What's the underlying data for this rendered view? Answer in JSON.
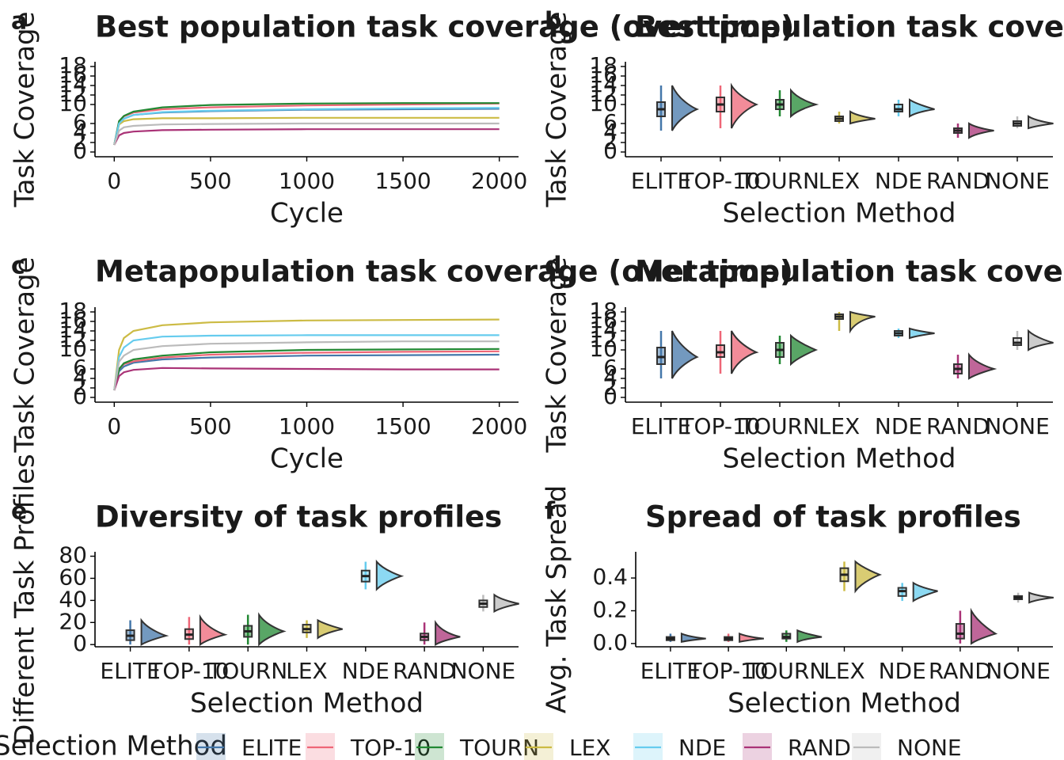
{
  "chart_data": [
    {
      "type": "line",
      "label": "a",
      "title": "Best population task coverage (over time)",
      "x_label": "Cycle",
      "y_label": "Task Coverage",
      "x": [
        0,
        25,
        50,
        100,
        250,
        500,
        1000,
        1500,
        2000
      ],
      "xlim": [
        -100,
        2100
      ],
      "xticks": [
        0,
        500,
        1000,
        1500,
        2000
      ],
      "ylim": [
        -1,
        19
      ],
      "yticks": [
        0,
        2,
        4,
        6,
        10,
        12,
        14,
        16,
        18
      ],
      "series": [
        {
          "name": "ELITE",
          "color": "#4477aa",
          "values": [
            1.5,
            6,
            7,
            7.8,
            8.3,
            8.6,
            8.9,
            9,
            9.1
          ]
        },
        {
          "name": "TOP-10",
          "color": "#ee6677",
          "values": [
            1.5,
            6.5,
            7.5,
            8.3,
            9,
            9.4,
            9.8,
            10,
            10.2
          ]
        },
        {
          "name": "TOURN",
          "color": "#228833",
          "values": [
            1.5,
            6.5,
            7.6,
            8.5,
            9.4,
            9.9,
            10.2,
            10.3,
            10.3
          ]
        },
        {
          "name": "LEX",
          "color": "#ccbb44",
          "values": [
            1.5,
            5.8,
            6.5,
            6.9,
            7.1,
            7.1,
            7.2,
            7.2,
            7.2
          ]
        },
        {
          "name": "NDE",
          "color": "#66ccee",
          "values": [
            1.5,
            6,
            7,
            7.8,
            8.4,
            8.7,
            9,
            9.2,
            9.3
          ]
        },
        {
          "name": "RAND",
          "color": "#aa3377",
          "values": [
            1.5,
            3.5,
            4,
            4.3,
            4.6,
            4.7,
            4.8,
            4.8,
            4.8
          ]
        },
        {
          "name": "NONE",
          "color": "#bbbbbb",
          "values": [
            1.5,
            4.5,
            5.2,
            5.5,
            5.8,
            5.9,
            6,
            6,
            6
          ]
        }
      ]
    },
    {
      "type": "box",
      "label": "b",
      "title": "Best population task coverage (final)",
      "x_label": "Selection Method",
      "y_label": "Task Coverage",
      "categories": [
        "ELITE",
        "TOP-10",
        "TOURN",
        "LEX",
        "NDE",
        "RAND",
        "NONE"
      ],
      "colors": [
        "#4477aa",
        "#ee6677",
        "#228833",
        "#ccbb44",
        "#66ccee",
        "#aa3377",
        "#bbbbbb"
      ],
      "ylim": [
        -1,
        19
      ],
      "yticks": [
        0,
        2,
        4,
        6,
        10,
        12,
        14,
        16,
        18
      ],
      "min": [
        4.5,
        5,
        7.5,
        6,
        7.5,
        3,
        5
      ],
      "q1": [
        7.5,
        8.5,
        9,
        6.5,
        8.5,
        4,
        5.5
      ],
      "median": [
        9,
        10,
        10,
        7,
        9,
        4.5,
        6
      ],
      "q3": [
        10.5,
        11.5,
        11,
        7.5,
        10,
        5,
        6.5
      ],
      "max": [
        14,
        14,
        13,
        8.5,
        11,
        6,
        7.5
      ]
    },
    {
      "type": "line",
      "label": "c",
      "title": "Metapopulation task coverage (over time)",
      "x_label": "Cycle",
      "y_label": "Task Coverage",
      "x": [
        0,
        25,
        50,
        100,
        250,
        500,
        1000,
        1500,
        2000
      ],
      "xlim": [
        -100,
        2100
      ],
      "xticks": [
        0,
        500,
        1000,
        1500,
        2000
      ],
      "ylim": [
        -1,
        19
      ],
      "yticks": [
        0,
        2,
        4,
        6,
        10,
        12,
        14,
        16,
        18
      ],
      "series": [
        {
          "name": "ELITE",
          "color": "#4477aa",
          "values": [
            1.5,
            5.5,
            6.5,
            7.3,
            8,
            8.4,
            8.8,
            8.9,
            9
          ]
        },
        {
          "name": "TOP-10",
          "color": "#ee6677",
          "values": [
            1.5,
            6,
            7,
            7.6,
            8.4,
            9,
            9.4,
            9.6,
            9.7
          ]
        },
        {
          "name": "TOURN",
          "color": "#228833",
          "values": [
            1.5,
            6,
            7.2,
            8,
            8.8,
            9.5,
            10,
            10.1,
            10.2
          ]
        },
        {
          "name": "LEX",
          "color": "#ccbb44",
          "values": [
            1.5,
            10,
            12.5,
            14,
            15.2,
            15.8,
            16.2,
            16.3,
            16.4
          ]
        },
        {
          "name": "NDE",
          "color": "#66ccee",
          "values": [
            1.5,
            8.5,
            10.5,
            12,
            12.8,
            13,
            13.1,
            13.1,
            13.1
          ]
        },
        {
          "name": "RAND",
          "color": "#aa3377",
          "values": [
            1.5,
            4.5,
            5.3,
            5.8,
            6.2,
            6.1,
            6,
            5.9,
            5.9
          ]
        },
        {
          "name": "NONE",
          "color": "#bbbbbb",
          "values": [
            1.5,
            7.5,
            8.8,
            10,
            10.8,
            11.3,
            11.6,
            11.8,
            11.8
          ]
        }
      ]
    },
    {
      "type": "box",
      "label": "d",
      "title": "Metapopulation task coverage (final)",
      "x_label": "Selection Method",
      "y_label": "Task Coverage",
      "categories": [
        "ELITE",
        "TOP-10",
        "TOURN",
        "LEX",
        "NDE",
        "RAND",
        "NONE"
      ],
      "colors": [
        "#4477aa",
        "#ee6677",
        "#228833",
        "#ccbb44",
        "#66ccee",
        "#aa3377",
        "#bbbbbb"
      ],
      "ylim": [
        -1,
        19
      ],
      "yticks": [
        0,
        2,
        4,
        6,
        10,
        12,
        14,
        16,
        18
      ],
      "min": [
        4,
        5,
        7,
        14,
        12.5,
        4,
        10
      ],
      "q1": [
        7,
        8.5,
        8.5,
        16.5,
        13,
        5,
        11
      ],
      "median": [
        8.5,
        9.5,
        10,
        17,
        13.5,
        6,
        11.5
      ],
      "q3": [
        10.5,
        11,
        11.5,
        17.5,
        14,
        7,
        12.5
      ],
      "max": [
        14,
        14,
        13,
        18,
        14.5,
        9,
        14
      ]
    },
    {
      "type": "box",
      "label": "e",
      "title": "Diversity of task profiles",
      "x_label": "Selection Method",
      "y_label": "Different Task Profiles",
      "categories": [
        "ELITE",
        "TOP-10",
        "TOURN",
        "LEX",
        "NDE",
        "RAND",
        "NONE"
      ],
      "colors": [
        "#4477aa",
        "#ee6677",
        "#228833",
        "#ccbb44",
        "#66ccee",
        "#aa3377",
        "#bbbbbb"
      ],
      "ylim": [
        -2,
        84
      ],
      "yticks": [
        0,
        20,
        40,
        60,
        80
      ],
      "min": [
        0,
        0,
        0,
        6,
        50,
        0,
        30
      ],
      "q1": [
        4,
        5,
        7,
        11,
        57,
        4,
        34
      ],
      "median": [
        8,
        9,
        12,
        14,
        62,
        7,
        37
      ],
      "q3": [
        13,
        14,
        17,
        18,
        67,
        10,
        40
      ],
      "max": [
        22,
        25,
        27,
        22,
        75,
        20,
        45
      ]
    },
    {
      "type": "box",
      "label": "f",
      "title": "Spread of task profiles",
      "x_label": "Selection Method",
      "y_label": "Avg. Task Spread",
      "categories": [
        "ELITE",
        "TOP-10",
        "TOURN",
        "LEX",
        "NDE",
        "RAND",
        "NONE"
      ],
      "colors": [
        "#4477aa",
        "#ee6677",
        "#228833",
        "#ccbb44",
        "#66ccee",
        "#aa3377",
        "#bbbbbb"
      ],
      "ylim": [
        -0.02,
        0.56
      ],
      "yticks": [
        {
          "value": 0,
          "label": "0.0"
        },
        0.2,
        0.4
      ],
      "min": [
        0.01,
        0.01,
        0.01,
        0.32,
        0.26,
        0,
        0.25
      ],
      "q1": [
        0.02,
        0.02,
        0.03,
        0.38,
        0.29,
        0.03,
        0.27
      ],
      "median": [
        0.03,
        0.03,
        0.04,
        0.42,
        0.32,
        0.06,
        0.28
      ],
      "q3": [
        0.04,
        0.04,
        0.06,
        0.46,
        0.34,
        0.12,
        0.29
      ],
      "max": [
        0.06,
        0.06,
        0.08,
        0.5,
        0.37,
        0.2,
        0.31
      ]
    }
  ],
  "legend": {
    "title": "Selection Method"
  }
}
